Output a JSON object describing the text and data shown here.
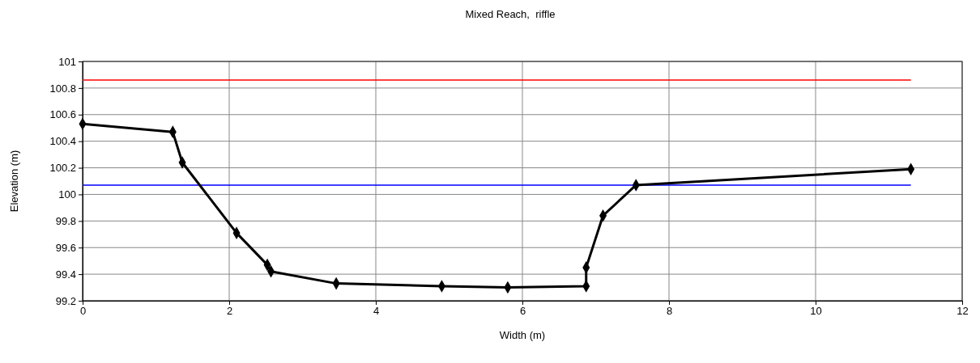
{
  "chart_data": {
    "type": "line",
    "title": "Mixed Reach,  riffle",
    "xlabel": "Width (m)",
    "ylabel": "Elevation (m)",
    "xlim": [
      0,
      12
    ],
    "xticks": [
      0,
      2,
      4,
      6,
      8,
      10,
      12
    ],
    "ylim": [
      99.2,
      101
    ],
    "yticks": [
      99.2,
      99.4,
      99.6,
      99.8,
      100,
      100.2,
      100.4,
      100.6,
      100.8,
      101
    ],
    "grid": true,
    "marker": "diamond",
    "line_style": "solid",
    "series": [
      {
        "color": "#ff0000",
        "x": [
          0,
          11.3
        ],
        "values": [
          100.86,
          100.86
        ],
        "marker": "none"
      },
      {
        "color": "#0000ff",
        "x": [
          0,
          11.3
        ],
        "values": [
          100.07,
          100.07
        ],
        "marker": "none"
      },
      {
        "color": "#000000",
        "x": [
          0,
          1.23,
          1.36,
          2.1,
          2.52,
          2.57,
          3.46,
          4.9,
          5.8,
          6.87,
          6.87,
          7.1,
          7.55,
          11.3
        ],
        "values": [
          100.53,
          100.47,
          100.24,
          99.71,
          99.47,
          99.42,
          99.33,
          99.31,
          99.3,
          99.31,
          99.45,
          99.84,
          100.07,
          100.19
        ]
      }
    ]
  }
}
